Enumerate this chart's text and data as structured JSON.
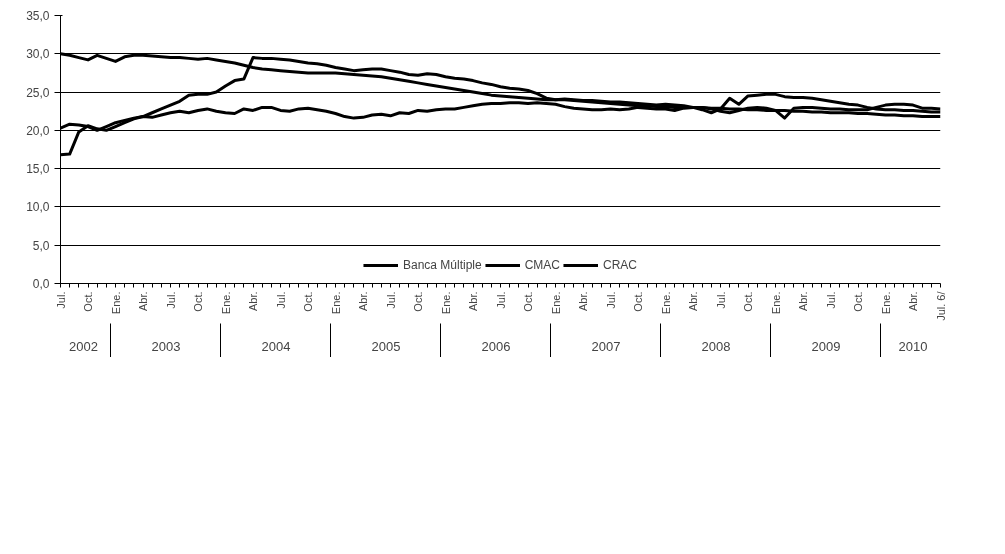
{
  "chart_data": {
    "type": "line",
    "x": [
      "2002-07",
      "2002-08",
      "2002-09",
      "2002-10",
      "2002-11",
      "2002-12",
      "2003-01",
      "2003-02",
      "2003-03",
      "2003-04",
      "2003-05",
      "2003-06",
      "2003-07",
      "2003-08",
      "2003-09",
      "2003-10",
      "2003-11",
      "2003-12",
      "2004-01",
      "2004-02",
      "2004-03",
      "2004-04",
      "2004-05",
      "2004-06",
      "2004-07",
      "2004-08",
      "2004-09",
      "2004-10",
      "2004-11",
      "2004-12",
      "2005-01",
      "2005-02",
      "2005-03",
      "2005-04",
      "2005-05",
      "2005-06",
      "2005-07",
      "2005-08",
      "2005-09",
      "2005-10",
      "2005-11",
      "2005-12",
      "2006-01",
      "2006-02",
      "2006-03",
      "2006-04",
      "2006-05",
      "2006-06",
      "2006-07",
      "2006-08",
      "2006-09",
      "2006-10",
      "2006-11",
      "2006-12",
      "2007-01",
      "2007-02",
      "2007-03",
      "2007-04",
      "2007-05",
      "2007-06",
      "2007-07",
      "2007-08",
      "2007-09",
      "2007-10",
      "2007-11",
      "2007-12",
      "2008-01",
      "2008-02",
      "2008-03",
      "2008-04",
      "2008-05",
      "2008-06",
      "2008-07",
      "2008-08",
      "2008-09",
      "2008-10",
      "2008-11",
      "2008-12",
      "2009-01",
      "2009-02",
      "2009-03",
      "2009-04",
      "2009-05",
      "2009-06",
      "2009-07",
      "2009-08",
      "2009-09",
      "2009-10",
      "2009-11",
      "2009-12",
      "2010-01",
      "2010-02",
      "2010-03",
      "2010-04",
      "2010-05",
      "2010-06",
      "2010-07"
    ],
    "xticks": [
      {
        "value": "2002-07",
        "label": "Jul."
      },
      {
        "value": "2002-10",
        "label": "Oct."
      },
      {
        "value": "2003-01",
        "label": "Ene."
      },
      {
        "value": "2003-04",
        "label": "Abr."
      },
      {
        "value": "2003-07",
        "label": "Jul."
      },
      {
        "value": "2003-10",
        "label": "Oct."
      },
      {
        "value": "2004-01",
        "label": "Ene."
      },
      {
        "value": "2004-04",
        "label": "Abr."
      },
      {
        "value": "2004-07",
        "label": "Jul."
      },
      {
        "value": "2004-10",
        "label": "Oct."
      },
      {
        "value": "2005-01",
        "label": "Ene."
      },
      {
        "value": "2005-04",
        "label": "Abr."
      },
      {
        "value": "2005-07",
        "label": "Jul."
      },
      {
        "value": "2005-10",
        "label": "Oct."
      },
      {
        "value": "2006-01",
        "label": "Ene."
      },
      {
        "value": "2006-04",
        "label": "Abr."
      },
      {
        "value": "2006-07",
        "label": "Jul."
      },
      {
        "value": "2006-10",
        "label": "Oct."
      },
      {
        "value": "2007-01",
        "label": "Ene."
      },
      {
        "value": "2007-04",
        "label": "Abr."
      },
      {
        "value": "2007-07",
        "label": "Jul."
      },
      {
        "value": "2007-10",
        "label": "Oct."
      },
      {
        "value": "2008-01",
        "label": "Ene."
      },
      {
        "value": "2008-04",
        "label": "Abr."
      },
      {
        "value": "2008-07",
        "label": "Jul."
      },
      {
        "value": "2008-10",
        "label": "Oct."
      },
      {
        "value": "2009-01",
        "label": "Ene."
      },
      {
        "value": "2009-04",
        "label": "Abr."
      },
      {
        "value": "2009-07",
        "label": "Jul."
      },
      {
        "value": "2009-10",
        "label": "Oct."
      },
      {
        "value": "2010-01",
        "label": "Ene."
      },
      {
        "value": "2010-04",
        "label": "Abr."
      },
      {
        "value": "2010-07",
        "label": "Jul. 6/"
      }
    ],
    "xlim": [
      "2002-07",
      "2010-07"
    ],
    "ylim": [
      0,
      35
    ],
    "yticks": [
      {
        "value": 0,
        "label": "0,0"
      },
      {
        "value": 5,
        "label": "5,0"
      },
      {
        "value": 10,
        "label": "10,0"
      },
      {
        "value": 15,
        "label": "15,0"
      },
      {
        "value": 20,
        "label": "20,0"
      },
      {
        "value": 25,
        "label": "25,0"
      },
      {
        "value": 30,
        "label": "30,0"
      },
      {
        "value": 35,
        "label": "35,0"
      }
    ],
    "grid": "y",
    "legend": "bottom",
    "annotations": [
      "2002",
      "2003",
      "2004",
      "2005",
      "2006",
      "2007",
      "2008",
      "2009",
      "2010"
    ],
    "series": [
      {
        "name": "Banca Múltiple",
        "color": "#000000",
        "values": [
          30.0,
          29.8,
          29.5,
          29.2,
          29.8,
          29.4,
          29.0,
          29.6,
          29.8,
          29.8,
          29.7,
          29.6,
          29.5,
          29.5,
          29.4,
          29.3,
          29.4,
          29.2,
          29.0,
          28.8,
          28.5,
          28.2,
          28.0,
          27.9,
          27.8,
          27.7,
          27.6,
          27.5,
          27.5,
          27.5,
          27.5,
          27.4,
          27.3,
          27.2,
          27.1,
          27.0,
          26.8,
          26.6,
          26.4,
          26.2,
          26.0,
          25.8,
          25.6,
          25.4,
          25.2,
          25.0,
          24.8,
          24.6,
          24.5,
          24.4,
          24.3,
          24.2,
          24.1,
          24.0,
          24.0,
          24.0,
          23.9,
          23.8,
          23.7,
          23.6,
          23.5,
          23.4,
          23.3,
          23.2,
          23.2,
          23.1,
          23.1,
          23.0,
          23.0,
          23.0,
          23.0,
          22.9,
          22.9,
          22.8,
          22.8,
          22.7,
          22.7,
          22.6,
          22.6,
          22.6,
          22.5,
          22.5,
          22.4,
          22.4,
          22.3,
          22.3,
          22.3,
          22.2,
          22.2,
          22.1,
          22.0,
          22.0,
          21.9,
          21.9,
          21.8,
          21.8,
          21.8
        ]
      },
      {
        "name": "CMAC",
        "color": "#000000",
        "values": [
          20.3,
          20.8,
          20.7,
          20.5,
          20.0,
          20.5,
          21.0,
          21.3,
          21.6,
          21.8,
          21.7,
          22.0,
          22.3,
          22.5,
          22.3,
          22.6,
          22.8,
          22.5,
          22.3,
          22.2,
          22.8,
          22.6,
          23.0,
          23.0,
          22.6,
          22.5,
          22.8,
          22.9,
          22.7,
          22.5,
          22.2,
          21.8,
          21.6,
          21.7,
          22.0,
          22.1,
          21.9,
          22.3,
          22.2,
          22.6,
          22.5,
          22.7,
          22.8,
          22.8,
          23.0,
          23.2,
          23.4,
          23.5,
          23.5,
          23.6,
          23.6,
          23.5,
          23.6,
          23.5,
          23.4,
          23.1,
          22.9,
          22.8,
          22.7,
          22.7,
          22.8,
          22.7,
          22.8,
          23.0,
          22.9,
          22.8,
          22.8,
          22.6,
          22.9,
          23.0,
          23.0,
          22.8,
          22.5,
          22.3,
          22.6,
          22.9,
          23.0,
          22.9,
          22.6,
          21.6,
          22.9,
          23.0,
          23.0,
          22.9,
          22.8,
          22.8,
          22.7,
          22.7,
          22.7,
          23.0,
          23.3,
          23.4,
          23.4,
          23.3,
          22.9,
          22.9,
          22.8
        ]
      },
      {
        "name": "CRAC",
        "color": "#000000",
        "values": [
          16.8,
          16.9,
          19.8,
          20.6,
          20.2,
          20.0,
          20.5,
          21.0,
          21.5,
          21.8,
          22.3,
          22.8,
          23.3,
          23.8,
          24.6,
          24.7,
          24.7,
          25.0,
          25.8,
          26.5,
          26.7,
          29.5,
          29.4,
          29.4,
          29.3,
          29.2,
          29.0,
          28.8,
          28.7,
          28.5,
          28.2,
          28.0,
          27.8,
          27.9,
          28.0,
          28.0,
          27.8,
          27.6,
          27.3,
          27.2,
          27.4,
          27.3,
          27.0,
          26.8,
          26.7,
          26.5,
          26.2,
          26.0,
          25.7,
          25.5,
          25.4,
          25.2,
          24.8,
          24.2,
          24.0,
          24.1,
          24.0,
          23.9,
          23.9,
          23.8,
          23.7,
          23.7,
          23.6,
          23.5,
          23.4,
          23.3,
          23.4,
          23.3,
          23.2,
          23.0,
          22.7,
          22.3,
          22.8,
          24.2,
          23.4,
          24.5,
          24.6,
          24.7,
          24.7,
          24.4,
          24.3,
          24.3,
          24.2,
          24.0,
          23.8,
          23.6,
          23.4,
          23.3,
          23.0,
          22.8,
          22.7,
          22.7,
          22.6,
          22.6,
          22.5,
          22.4,
          22.4
        ]
      }
    ]
  }
}
